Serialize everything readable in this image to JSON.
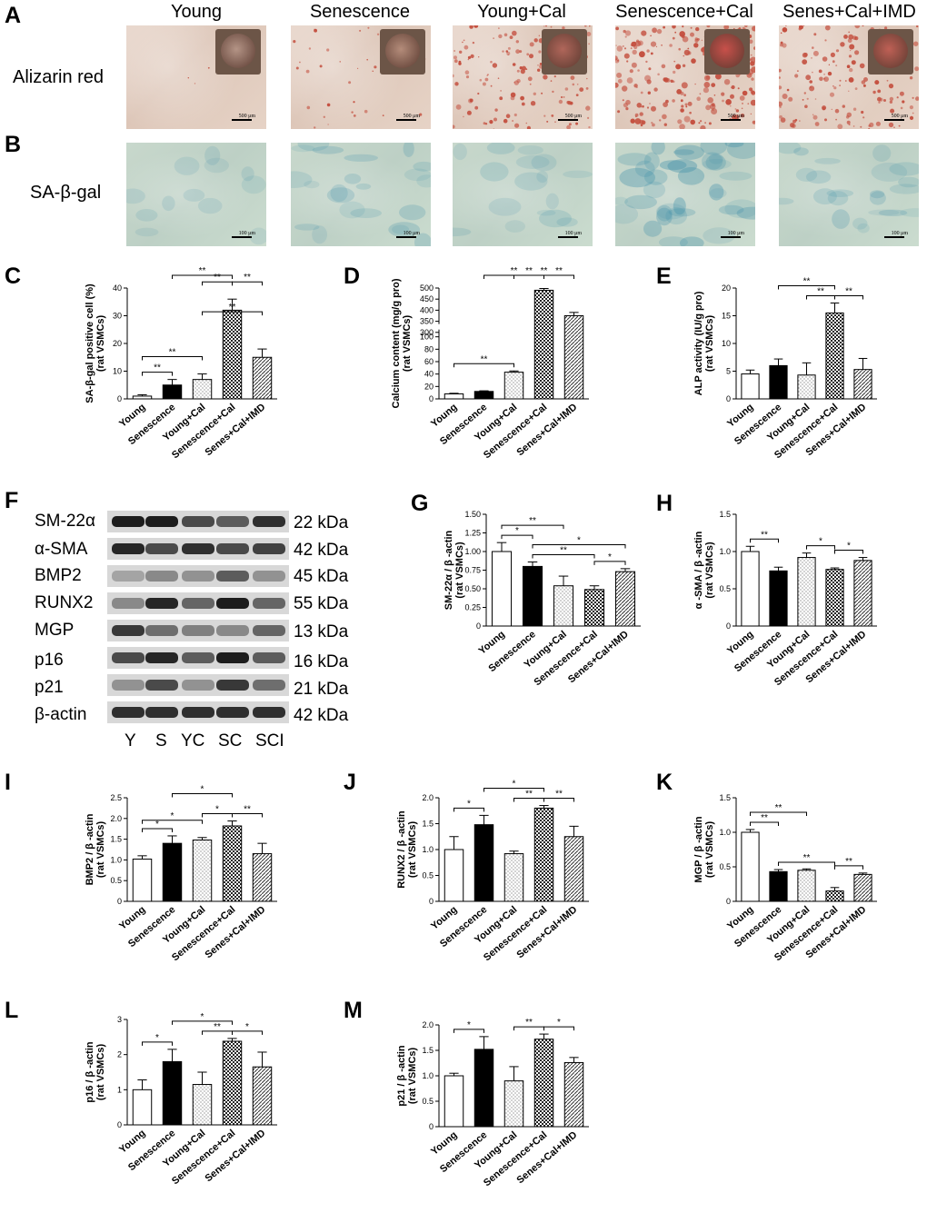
{
  "panels": {
    "A": "A",
    "B": "B",
    "C": "C",
    "D": "D",
    "E": "E",
    "F": "F",
    "G": "G",
    "H": "H",
    "I": "I",
    "J": "J",
    "K": "K",
    "L": "L",
    "M": "M"
  },
  "image_rows": {
    "columns": [
      "Young",
      "Senescence",
      "Young+Cal",
      "Senescence+Cal",
      "Senes+Cal+IMD"
    ],
    "rowA": {
      "label": "Alizarin red",
      "scale": "500 μm",
      "well_colors": [
        "#b49486",
        "#b48c7a",
        "#b0665a",
        "#c8504a",
        "#bf6055"
      ],
      "dot_colors": [
        "#c45040"
      ],
      "dot_density": [
        0.02,
        0.12,
        0.55,
        0.85,
        0.6
      ]
    },
    "rowB": {
      "label": "SA-β-gal",
      "scale": "100 μm",
      "blue_intensity": [
        0.1,
        0.35,
        0.2,
        0.75,
        0.35
      ]
    }
  },
  "blot": {
    "labels": [
      "SM-22α",
      "α-SMA",
      "BMP2",
      "RUNX2",
      "MGP",
      "p16",
      "p21",
      "β-actin"
    ],
    "kda": [
      "22 kDa",
      "42 kDa",
      "45 kDa",
      "55 kDa",
      "13 kDa",
      "16 kDa",
      "21 kDa",
      "42 kDa"
    ],
    "lanes": [
      "Y",
      "S",
      "YC",
      "SC",
      "SCI"
    ]
  },
  "categories": [
    "Young",
    "Senescence",
    "Young+Cal",
    "Senescence+Cal",
    "Senes+Cal+IMD"
  ],
  "chart_data": [
    {
      "panel": "C",
      "type": "bar",
      "ylabel": [
        "SA-β-gal positive cell (%)",
        "(rat VSMCs)"
      ],
      "ylim": [
        0,
        40
      ],
      "ticks": [
        "0",
        "10",
        "20",
        "30",
        "40"
      ],
      "values": [
        1,
        5,
        7,
        32,
        15
      ],
      "errors": [
        0.5,
        2,
        2,
        4,
        3
      ],
      "sig": [
        {
          "a": 0,
          "b": 1,
          "label": "**",
          "level": 0
        },
        {
          "a": 0,
          "b": 2,
          "label": "**",
          "level": 1
        },
        {
          "a": 1,
          "b": 3,
          "label": "**",
          "level": 2
        },
        {
          "a": 2,
          "b": 3,
          "label": "**",
          "level": 1
        },
        {
          "a": 3,
          "b": 4,
          "label": "**",
          "level": 1
        },
        {
          "a": 2,
          "b": 4,
          "label": "**",
          "level": 3
        }
      ]
    },
    {
      "panel": "D",
      "type": "bar",
      "ylabel": [
        "Calcium content (mg/g pro)",
        "(rat VSMCs)"
      ],
      "ylim": [
        0,
        500
      ],
      "ticks": [
        "0",
        "20",
        "40",
        "60",
        "80",
        "100",
        "300",
        "350",
        "400",
        "450",
        "500"
      ],
      "values": [
        8,
        12,
        43,
        490,
        375
      ],
      "errors": [
        1,
        1,
        2,
        8,
        15
      ],
      "sig": [
        {
          "a": 0,
          "b": 2,
          "label": "**",
          "level": 0
        },
        {
          "a": 1,
          "b": 3,
          "label": "**",
          "level": 2
        },
        {
          "a": 2,
          "b": 3,
          "label": "**",
          "level": 1
        },
        {
          "a": 3,
          "b": 4,
          "label": "**",
          "level": 1
        },
        {
          "a": 2,
          "b": 4,
          "label": "**",
          "level": 3
        }
      ]
    },
    {
      "panel": "E",
      "type": "bar",
      "ylabel": [
        "ALP activity (IU/g pro)",
        "(rat VSMCs)"
      ],
      "ylim": [
        0,
        20
      ],
      "ticks": [
        "0",
        "5",
        "10",
        "15",
        "20"
      ],
      "values": [
        4.5,
        6,
        4.3,
        15.5,
        5.3
      ],
      "errors": [
        0.7,
        1.2,
        2.2,
        1.8,
        2
      ],
      "sig": [
        {
          "a": 1,
          "b": 3,
          "label": "**",
          "level": 1
        },
        {
          "a": 2,
          "b": 3,
          "label": "**",
          "level": 0
        },
        {
          "a": 3,
          "b": 4,
          "label": "**",
          "level": 0
        }
      ]
    },
    {
      "panel": "G",
      "type": "bar",
      "ylabel": [
        "SM-22α / β -actin",
        "(rat VSMCs)"
      ],
      "ylim": [
        0,
        1.5
      ],
      "ticks": [
        "0",
        "0.25",
        "0.50",
        "0.75",
        "1.00",
        "1.25",
        "1.50"
      ],
      "values": [
        1.0,
        0.8,
        0.54,
        0.49,
        0.73
      ],
      "errors": [
        0.12,
        0.06,
        0.13,
        0.05,
        0.04
      ],
      "sig": [
        {
          "a": 0,
          "b": 1,
          "label": "*",
          "level": 0
        },
        {
          "a": 0,
          "b": 2,
          "label": "**",
          "level": 1
        },
        {
          "a": 1,
          "b": 3,
          "label": "**",
          "level": 0
        },
        {
          "a": 1,
          "b": 4,
          "label": "*",
          "level": 1
        },
        {
          "a": 3,
          "b": 4,
          "label": "*",
          "level": 0
        }
      ]
    },
    {
      "panel": "H",
      "type": "bar",
      "ylabel": [
        "α -SMA / β -actin",
        "(rat VSMCs)"
      ],
      "ylim": [
        0,
        1.5
      ],
      "ticks": [
        "0",
        "0.5",
        "1.0",
        "1.5"
      ],
      "values": [
        1.0,
        0.74,
        0.92,
        0.76,
        0.88
      ],
      "errors": [
        0.07,
        0.05,
        0.06,
        0.02,
        0.04
      ],
      "sig": [
        {
          "a": 0,
          "b": 1,
          "label": "**",
          "level": 0
        },
        {
          "a": 2,
          "b": 3,
          "label": "*",
          "level": 0
        },
        {
          "a": 3,
          "b": 4,
          "label": "*",
          "level": 0
        }
      ]
    },
    {
      "panel": "I",
      "type": "bar",
      "ylabel": [
        "BMP2 / β -actin",
        "(rat VSMCs)"
      ],
      "ylim": [
        0,
        2.5
      ],
      "ticks": [
        "0",
        "0.5",
        "1.0",
        "1.5",
        "2.0",
        "2.5"
      ],
      "values": [
        1.02,
        1.4,
        1.48,
        1.82,
        1.15
      ],
      "errors": [
        0.08,
        0.18,
        0.06,
        0.12,
        0.25
      ],
      "sig": [
        {
          "a": 0,
          "b": 1,
          "label": "*",
          "level": 0
        },
        {
          "a": 0,
          "b": 2,
          "label": "*",
          "level": 1
        },
        {
          "a": 1,
          "b": 3,
          "label": "*",
          "level": 2
        },
        {
          "a": 2,
          "b": 3,
          "label": "*",
          "level": 0
        },
        {
          "a": 3,
          "b": 4,
          "label": "**",
          "level": 0
        }
      ]
    },
    {
      "panel": "J",
      "type": "bar",
      "ylabel": [
        "RUNX2 / β -actin",
        "(rat VSMCs)"
      ],
      "ylim": [
        0,
        2.0
      ],
      "ticks": [
        "0",
        "0.5",
        "1.0",
        "1.5",
        "2.0"
      ],
      "values": [
        1.0,
        1.48,
        0.92,
        1.8,
        1.25
      ],
      "errors": [
        0.25,
        0.18,
        0.05,
        0.05,
        0.2
      ],
      "sig": [
        {
          "a": 0,
          "b": 1,
          "label": "*",
          "level": 0
        },
        {
          "a": 1,
          "b": 3,
          "label": "*",
          "level": 1
        },
        {
          "a": 2,
          "b": 3,
          "label": "**",
          "level": 0
        },
        {
          "a": 3,
          "b": 4,
          "label": "**",
          "level": 0
        }
      ]
    },
    {
      "panel": "K",
      "type": "bar",
      "ylabel": [
        "MGP / β -actin",
        "(rat VSMCs)"
      ],
      "ylim": [
        0,
        1.5
      ],
      "ticks": [
        "0",
        "0.5",
        "1.0",
        "1.5"
      ],
      "values": [
        1.0,
        0.43,
        0.45,
        0.15,
        0.39
      ],
      "errors": [
        0.04,
        0.03,
        0.02,
        0.05,
        0.02
      ],
      "sig": [
        {
          "a": 0,
          "b": 1,
          "label": "**",
          "level": 0
        },
        {
          "a": 0,
          "b": 2,
          "label": "**",
          "level": 1
        },
        {
          "a": 1,
          "b": 3,
          "label": "**",
          "level": 0
        },
        {
          "a": 3,
          "b": 4,
          "label": "**",
          "level": 0
        }
      ]
    },
    {
      "panel": "L",
      "type": "bar",
      "ylabel": [
        "p16 / β -actin",
        "(rat VSMCs)"
      ],
      "ylim": [
        0,
        3
      ],
      "ticks": [
        "0",
        "1",
        "2",
        "3"
      ],
      "values": [
        1.0,
        1.8,
        1.15,
        2.38,
        1.65
      ],
      "errors": [
        0.28,
        0.35,
        0.35,
        0.08,
        0.42
      ],
      "sig": [
        {
          "a": 0,
          "b": 1,
          "label": "*",
          "level": 0
        },
        {
          "a": 1,
          "b": 3,
          "label": "*",
          "level": 1
        },
        {
          "a": 2,
          "b": 3,
          "label": "**",
          "level": 0
        },
        {
          "a": 3,
          "b": 4,
          "label": "*",
          "level": 0
        }
      ]
    },
    {
      "panel": "M",
      "type": "bar",
      "ylabel": [
        "p21 / β -actin",
        "(rat VSMCs)"
      ],
      "ylim": [
        0,
        2.0
      ],
      "ticks": [
        "0",
        "0.5",
        "1.0",
        "1.5",
        "2.0"
      ],
      "values": [
        1.0,
        1.52,
        0.9,
        1.72,
        1.26
      ],
      "errors": [
        0.05,
        0.25,
        0.28,
        0.1,
        0.1
      ],
      "sig": [
        {
          "a": 0,
          "b": 1,
          "label": "*",
          "level": 0
        },
        {
          "a": 2,
          "b": 3,
          "label": "**",
          "level": 0
        },
        {
          "a": 3,
          "b": 4,
          "label": "*",
          "level": 0
        }
      ]
    }
  ],
  "bar_styles": [
    "white",
    "black",
    "dots",
    "checker",
    "hatch"
  ]
}
